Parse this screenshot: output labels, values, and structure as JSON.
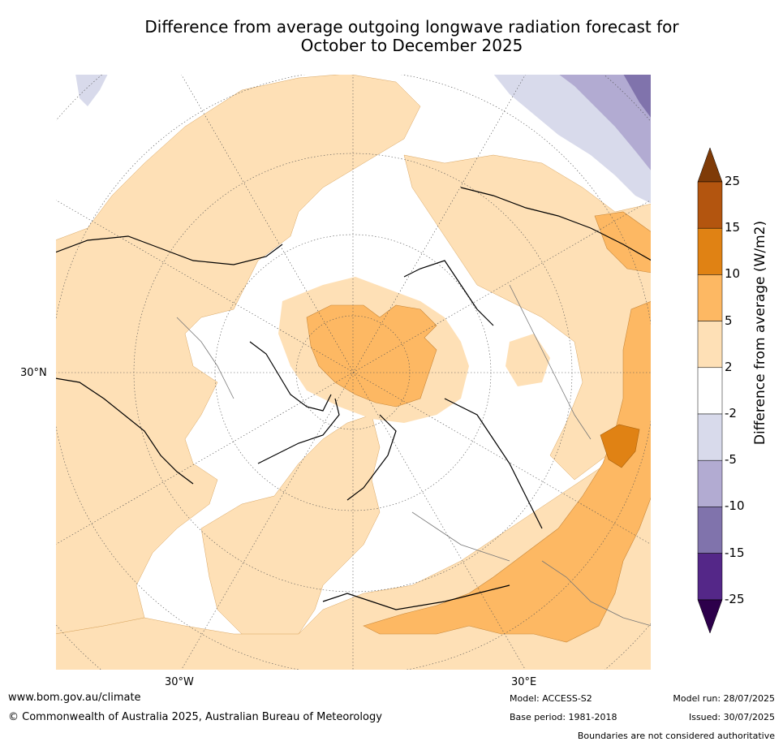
{
  "title": {
    "line1": "Difference from average outgoing longwave radiation forecast for",
    "line2": "October to December 2025"
  },
  "map": {
    "projection": "north-polar-stereographic",
    "lat_labels": [
      "30°N"
    ],
    "lon_labels": [
      "30°W",
      "30°E"
    ],
    "regions": [
      {
        "name": "arctic-ocean-greenland-center",
        "category": "5 to 10"
      },
      {
        "name": "north-america",
        "category": "2 to 5"
      },
      {
        "name": "north-atlantic",
        "category": "2 to 5"
      },
      {
        "name": "north-pacific",
        "category": "2 to 5"
      },
      {
        "name": "mediterranean-middle-east",
        "category": "5 to 10"
      },
      {
        "name": "caspian-region",
        "category": "10 to 15"
      },
      {
        "name": "western-europe",
        "category": "-2 to 2"
      },
      {
        "name": "siberia-east-asia",
        "category": "-2 to 2"
      },
      {
        "name": "tropical-west-pacific-corner",
        "category": "-10 to -5"
      }
    ]
  },
  "colorbar": {
    "label": "Difference from average (W/m2)",
    "ticks": [
      "25",
      "15",
      "10",
      "5",
      "2",
      "-2",
      "-5",
      "-10",
      "-15",
      "-25"
    ],
    "bands": [
      {
        "range": "15 to 25",
        "color": "#b3550f"
      },
      {
        "range": "10 to 15",
        "color": "#e08214"
      },
      {
        "range": "5 to 10",
        "color": "#fdb863"
      },
      {
        "range": "2 to 5",
        "color": "#fee0b6"
      },
      {
        "range": "-2 to 2",
        "color": "#ffffff"
      },
      {
        "range": "-5 to -2",
        "color": "#d8daeb"
      },
      {
        "range": "-10 to -5",
        "color": "#b2abd2"
      },
      {
        "range": "-15 to -10",
        "color": "#8073ac"
      },
      {
        "range": "-25 to -15",
        "color": "#542788"
      }
    ],
    "over_color": "#7f3b08",
    "under_color": "#2d004b"
  },
  "footer": {
    "url": "www.bom.gov.au/climate",
    "copyright": "© Commonwealth of Australia 2025, Australian Bureau of Meteorology",
    "model": "Model: ACCESS-S2",
    "base_period": "Base period: 1981-2018",
    "model_run": "Model run: 28/07/2025",
    "issued": "Issued: 30/07/2025",
    "disclaimer": "Boundaries are not considered authoritative"
  }
}
